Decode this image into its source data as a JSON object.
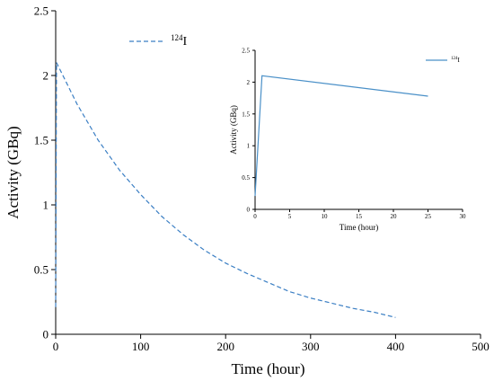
{
  "chart_data": [
    {
      "type": "line",
      "xlabel": "Time (hour)",
      "ylabel": "Activity (GBq)",
      "xlim": [
        0,
        500
      ],
      "ylim": [
        0,
        2.5
      ],
      "xticks": [
        0,
        100,
        200,
        300,
        400,
        500
      ],
      "yticks": [
        0,
        0.5,
        1,
        1.5,
        2,
        2.5
      ],
      "legend": {
        "label_sup": "124",
        "label_main": "I",
        "placement": "top-center"
      },
      "series": [
        {
          "name": "124I",
          "style": "dashed",
          "color": "#3b7fc4",
          "x": [
            0,
            1,
            25,
            50,
            75,
            100,
            125,
            150,
            175,
            200,
            225,
            250,
            275,
            300,
            325,
            350,
            375,
            400
          ],
          "y": [
            0.21,
            2.1,
            1.78,
            1.5,
            1.27,
            1.08,
            0.91,
            0.77,
            0.65,
            0.55,
            0.47,
            0.4,
            0.33,
            0.28,
            0.24,
            0.2,
            0.17,
            0.13
          ]
        }
      ]
    },
    {
      "type": "line",
      "xlabel": "Time (hour)",
      "ylabel": "Activity (GBq)",
      "xlim": [
        0,
        30
      ],
      "ylim": [
        0,
        2.5
      ],
      "xticks": [
        0,
        5,
        10,
        15,
        20,
        25,
        30
      ],
      "yticks": [
        0,
        0.5,
        1,
        1.5,
        2,
        2.5
      ],
      "legend": {
        "label_sup": "124",
        "label_main": "I",
        "placement": "top-right"
      },
      "series": [
        {
          "name": "124I",
          "style": "solid",
          "color": "#4a90c8",
          "x": [
            0,
            1,
            25
          ],
          "y": [
            0.21,
            2.1,
            1.78
          ]
        }
      ]
    }
  ]
}
